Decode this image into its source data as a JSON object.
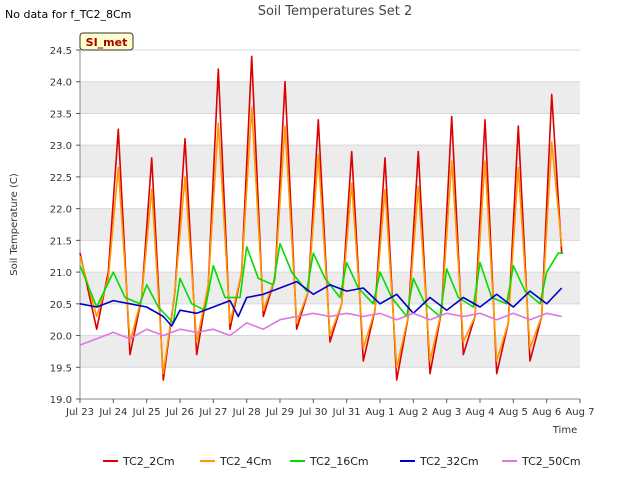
{
  "note": "No data for f_TC2_8Cm",
  "site_tag": "SI_met",
  "chart_data": {
    "type": "line",
    "title": "Soil Temperatures Set 2",
    "xlabel": "Time",
    "ylabel": "Soil Temperature (C)",
    "ylim": [
      19.0,
      24.5
    ],
    "xlim": [
      "Jul 23",
      "Aug 7"
    ],
    "yticks": [
      19.0,
      19.5,
      20.0,
      20.5,
      21.0,
      21.5,
      22.0,
      22.5,
      23.0,
      23.5,
      24.0,
      24.5
    ],
    "xticks": [
      "Jul 23",
      "Jul 24",
      "Jul 25",
      "Jul 26",
      "Jul 27",
      "Jul 28",
      "Jul 29",
      "Jul 30",
      "Jul 31",
      "Aug 1",
      "Aug 2",
      "Aug 3",
      "Aug 4",
      "Aug 5",
      "Aug 6",
      "Aug 7"
    ],
    "grid": "horizontal banded",
    "legend": "bottom",
    "x_unit": "day index from Jul 23",
    "series": [
      {
        "name": "TC2_2Cm",
        "color": "#dd0000",
        "x": [
          0.0,
          0.5,
          0.85,
          1.15,
          1.5,
          1.85,
          2.15,
          2.5,
          2.85,
          3.15,
          3.5,
          3.85,
          4.15,
          4.5,
          4.85,
          5.15,
          5.5,
          5.85,
          6.15,
          6.5,
          6.85,
          7.15,
          7.5,
          7.85,
          8.15,
          8.5,
          8.85,
          9.15,
          9.5,
          9.85,
          10.15,
          10.5,
          10.85,
          11.15,
          11.5,
          11.85,
          12.15,
          12.5,
          12.85,
          13.15,
          13.5,
          13.85,
          14.15,
          14.45
        ],
        "y": [
          21.3,
          20.1,
          21.0,
          23.25,
          19.7,
          20.6,
          22.8,
          19.3,
          20.7,
          23.1,
          19.7,
          20.8,
          24.2,
          20.1,
          21.0,
          24.4,
          20.3,
          20.9,
          24.0,
          20.1,
          20.7,
          23.4,
          19.9,
          20.5,
          22.9,
          19.6,
          20.4,
          22.8,
          19.3,
          20.3,
          22.9,
          19.4,
          20.4,
          23.45,
          19.7,
          20.3,
          23.4,
          19.4,
          20.2,
          23.3,
          19.6,
          20.3,
          23.8,
          21.3
        ]
      },
      {
        "name": "TC2_4Cm",
        "color": "#ff9900",
        "x": [
          0.0,
          0.5,
          0.85,
          1.15,
          1.5,
          1.85,
          2.15,
          2.5,
          2.85,
          3.15,
          3.5,
          3.85,
          4.15,
          4.5,
          4.85,
          5.15,
          5.5,
          5.85,
          6.15,
          6.5,
          6.85,
          7.15,
          7.5,
          7.85,
          8.15,
          8.5,
          8.85,
          9.15,
          9.5,
          9.85,
          10.15,
          10.5,
          10.85,
          11.15,
          11.5,
          11.85,
          12.15,
          12.5,
          12.85,
          13.15,
          13.5,
          13.85,
          14.15,
          14.45
        ],
        "y": [
          21.25,
          20.3,
          20.9,
          22.65,
          19.9,
          20.6,
          22.3,
          19.4,
          20.7,
          22.5,
          19.9,
          20.8,
          23.35,
          20.2,
          21.0,
          23.6,
          20.4,
          20.9,
          23.3,
          20.2,
          20.7,
          22.85,
          20.0,
          20.5,
          22.4,
          19.8,
          20.4,
          22.3,
          19.5,
          20.3,
          22.35,
          19.6,
          20.4,
          22.75,
          19.9,
          20.3,
          22.75,
          19.6,
          20.2,
          22.65,
          19.8,
          20.3,
          23.05,
          21.4
        ]
      },
      {
        "name": "TC2_16Cm",
        "color": "#00dd00",
        "x": [
          0.0,
          0.5,
          1.0,
          1.35,
          1.8,
          2.0,
          2.35,
          2.8,
          3.0,
          3.35,
          3.75,
          4.0,
          4.35,
          4.8,
          5.0,
          5.35,
          5.8,
          6.0,
          6.35,
          6.8,
          7.0,
          7.35,
          7.8,
          8.0,
          8.35,
          8.8,
          9.0,
          9.35,
          9.8,
          10.0,
          10.35,
          10.8,
          11.0,
          11.35,
          11.8,
          12.0,
          12.35,
          12.8,
          13.0,
          13.35,
          13.8,
          14.0,
          14.35,
          14.5
        ],
        "y": [
          21.1,
          20.45,
          21.0,
          20.6,
          20.5,
          20.8,
          20.45,
          20.2,
          20.9,
          20.5,
          20.4,
          21.1,
          20.6,
          20.6,
          21.4,
          20.9,
          20.8,
          21.45,
          21.0,
          20.7,
          21.3,
          20.9,
          20.6,
          21.15,
          20.75,
          20.5,
          21.0,
          20.6,
          20.3,
          20.9,
          20.5,
          20.3,
          21.05,
          20.6,
          20.45,
          21.15,
          20.6,
          20.5,
          21.1,
          20.7,
          20.5,
          21.0,
          21.3,
          21.3
        ]
      },
      {
        "name": "TC2_32Cm",
        "color": "#0000cc",
        "x": [
          0.0,
          0.5,
          1.0,
          1.5,
          2.0,
          2.5,
          2.75,
          3.0,
          3.5,
          4.0,
          4.5,
          4.75,
          5.0,
          5.5,
          6.0,
          6.5,
          7.0,
          7.5,
          8.0,
          8.5,
          9.0,
          9.5,
          10.0,
          10.5,
          11.0,
          11.5,
          12.0,
          12.5,
          13.0,
          13.5,
          14.0,
          14.45
        ],
        "y": [
          20.5,
          20.45,
          20.55,
          20.5,
          20.45,
          20.3,
          20.15,
          20.4,
          20.35,
          20.45,
          20.55,
          20.3,
          20.6,
          20.65,
          20.75,
          20.85,
          20.65,
          20.8,
          20.7,
          20.75,
          20.5,
          20.65,
          20.35,
          20.6,
          20.4,
          20.6,
          20.45,
          20.65,
          20.45,
          20.7,
          20.5,
          20.75
        ]
      },
      {
        "name": "TC2_50Cm",
        "color": "#dd77dd",
        "x": [
          0.0,
          0.5,
          1.0,
          1.5,
          2.0,
          2.5,
          3.0,
          3.5,
          4.0,
          4.5,
          5.0,
          5.5,
          6.0,
          6.5,
          7.0,
          7.5,
          8.0,
          8.5,
          9.0,
          9.5,
          10.0,
          10.5,
          11.0,
          11.5,
          12.0,
          12.5,
          13.0,
          13.5,
          14.0,
          14.45
        ],
        "y": [
          19.85,
          19.95,
          20.05,
          19.95,
          20.1,
          20.0,
          20.1,
          20.05,
          20.1,
          20.0,
          20.2,
          20.1,
          20.25,
          20.3,
          20.35,
          20.3,
          20.35,
          20.3,
          20.35,
          20.25,
          20.35,
          20.25,
          20.35,
          20.3,
          20.35,
          20.25,
          20.35,
          20.25,
          20.35,
          20.3
        ]
      }
    ]
  }
}
